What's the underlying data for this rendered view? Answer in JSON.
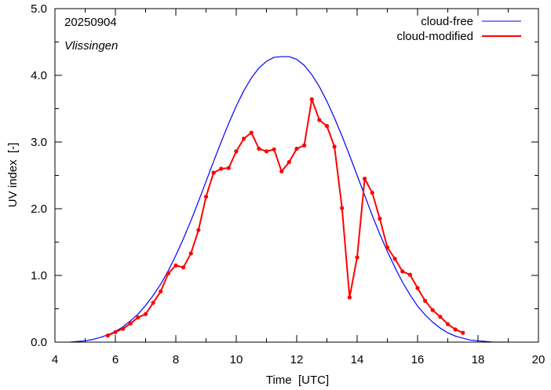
{
  "chart_data": {
    "type": "line",
    "annotations": {
      "date": "20250904",
      "station": "Vlissingen"
    },
    "xlabel": "Time  [UTC]",
    "ylabel": "UV index  [-]",
    "xlim": [
      4,
      20
    ],
    "ylim": [
      0.0,
      5.0
    ],
    "x_ticks": [
      "4",
      "6",
      "8",
      "10",
      "12",
      "14",
      "16",
      "18",
      "20"
    ],
    "y_ticks": [
      "0.0",
      "1.0",
      "2.0",
      "3.0",
      "4.0",
      "5.0"
    ],
    "grid": false,
    "legend_position": "top-right",
    "series": [
      {
        "name": "cloud-free",
        "color": "#0000ff",
        "x": [
          4.5,
          4.75,
          5.0,
          5.25,
          5.5,
          5.75,
          6.0,
          6.25,
          6.5,
          6.75,
          7.0,
          7.25,
          7.5,
          7.75,
          8.0,
          8.25,
          8.5,
          8.75,
          9.0,
          9.25,
          9.5,
          9.75,
          10.0,
          10.25,
          10.5,
          10.75,
          11.0,
          11.25,
          11.5,
          11.75,
          12.0,
          12.25,
          12.5,
          12.75,
          13.0,
          13.25,
          13.5,
          13.75,
          14.0,
          14.25,
          14.5,
          14.75,
          15.0,
          15.25,
          15.5,
          15.75,
          16.0,
          16.25,
          16.5,
          16.75,
          17.0,
          17.25,
          17.5,
          17.75,
          18.0,
          18.25,
          18.5,
          18.75,
          19.0
        ],
        "values": [
          0.0,
          0.01,
          0.02,
          0.04,
          0.07,
          0.11,
          0.16,
          0.23,
          0.32,
          0.42,
          0.55,
          0.7,
          0.87,
          1.07,
          1.3,
          1.55,
          1.82,
          2.11,
          2.41,
          2.71,
          3.0,
          3.28,
          3.54,
          3.77,
          3.96,
          4.11,
          4.21,
          4.27,
          4.28,
          4.28,
          4.24,
          4.15,
          4.01,
          3.83,
          3.61,
          3.36,
          3.09,
          2.8,
          2.5,
          2.2,
          1.9,
          1.62,
          1.36,
          1.12,
          0.9,
          0.71,
          0.54,
          0.41,
          0.3,
          0.21,
          0.14,
          0.09,
          0.06,
          0.03,
          0.02,
          0.01,
          0.0,
          0.0,
          0.0
        ]
      },
      {
        "name": "cloud-modified",
        "color": "#ff0000",
        "x": [
          5.75,
          6.0,
          6.25,
          6.5,
          6.75,
          7.0,
          7.25,
          7.5,
          7.75,
          8.0,
          8.25,
          8.5,
          8.75,
          9.0,
          9.25,
          9.5,
          9.75,
          10.0,
          10.25,
          10.5,
          10.75,
          11.0,
          11.25,
          11.5,
          11.75,
          12.0,
          12.25,
          12.5,
          12.75,
          13.0,
          13.25,
          13.5,
          13.75,
          14.0,
          14.25,
          14.5,
          14.75,
          15.0,
          15.25,
          15.5,
          15.75,
          16.0,
          16.25,
          16.5,
          16.75,
          17.0,
          17.25,
          17.5
        ],
        "values": [
          0.1,
          0.15,
          0.2,
          0.28,
          0.37,
          0.42,
          0.59,
          0.76,
          1.03,
          1.15,
          1.12,
          1.33,
          1.68,
          2.18,
          2.54,
          2.6,
          2.61,
          2.86,
          3.05,
          3.14,
          2.9,
          2.86,
          2.89,
          2.56,
          2.7,
          2.9,
          2.95,
          3.64,
          3.33,
          3.24,
          2.93,
          2.01,
          0.67,
          1.27,
          2.45,
          2.24,
          1.85,
          1.42,
          1.25,
          1.06,
          1.01,
          0.81,
          0.62,
          0.48,
          0.38,
          0.27,
          0.19,
          0.14
        ]
      }
    ]
  }
}
